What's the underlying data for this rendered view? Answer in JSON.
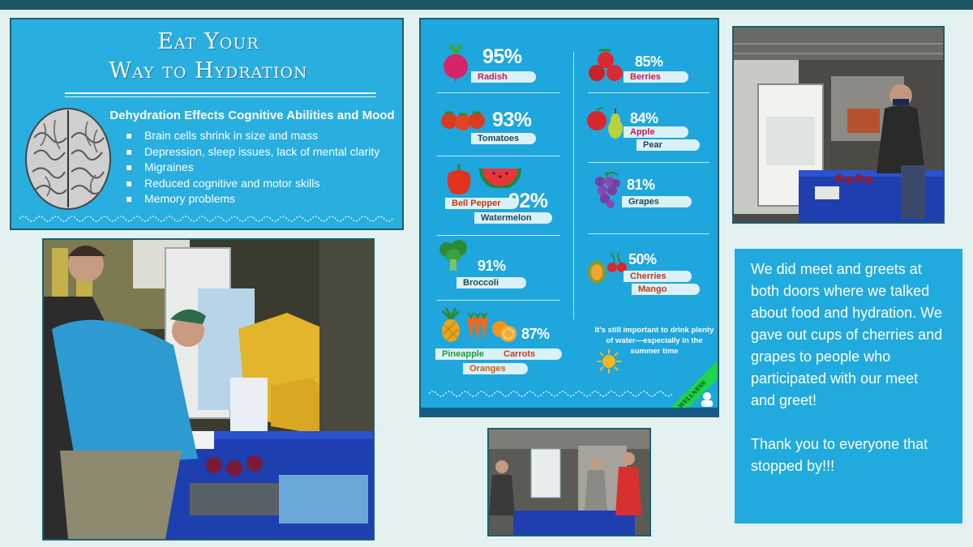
{
  "poster": {
    "title_line1": "Eat Your",
    "title_line2": "Way to Hydration",
    "heading": "Dehydration Effects Cognitive Abilities and Mood",
    "effects": [
      "Brain cells shrink in size and mass",
      "Depression, sleep issues, lack of mental clarity",
      "Migraines",
      "Reduced cognitive and motor skills",
      "Memory problems"
    ]
  },
  "infographic": {
    "items": [
      {
        "percent": "95%",
        "labels": [
          "Radish"
        ]
      },
      {
        "percent": "93%",
        "labels": [
          "Tomatoes"
        ]
      },
      {
        "percent": "92%",
        "labels": [
          "Bell Pepper",
          "Watermelon"
        ]
      },
      {
        "percent": "91%",
        "labels": [
          "Broccoli"
        ]
      },
      {
        "percent": "87%",
        "labels": [
          "Pineapple",
          "Carrots",
          "Oranges"
        ]
      },
      {
        "percent": "85%",
        "labels": [
          "Berries"
        ]
      },
      {
        "percent": "84%",
        "labels": [
          "Apple",
          "Pear"
        ]
      },
      {
        "percent": "81%",
        "labels": [
          "Grapes"
        ]
      },
      {
        "percent": "50%",
        "labels": [
          "Cherries",
          "Mango"
        ]
      }
    ],
    "reminder": "It's still important to drink plenty of water—especially in the summer time",
    "badge": "WELLNESS"
  },
  "message": {
    "paragraph1": "We did meet and greets at both doors where we talked about food and hydration. We gave out cups of cherries and grapes to people who participated with our meet and greet!",
    "paragraph2": "Thank you to everyone that stopped by!!!"
  },
  "colors": {
    "poster_bg": "#29aee0",
    "infographic_bg": "#1fa6dd",
    "message_bg": "#21aadd",
    "frame": "#1b5f70",
    "page_bg": "#e4f1f1"
  }
}
